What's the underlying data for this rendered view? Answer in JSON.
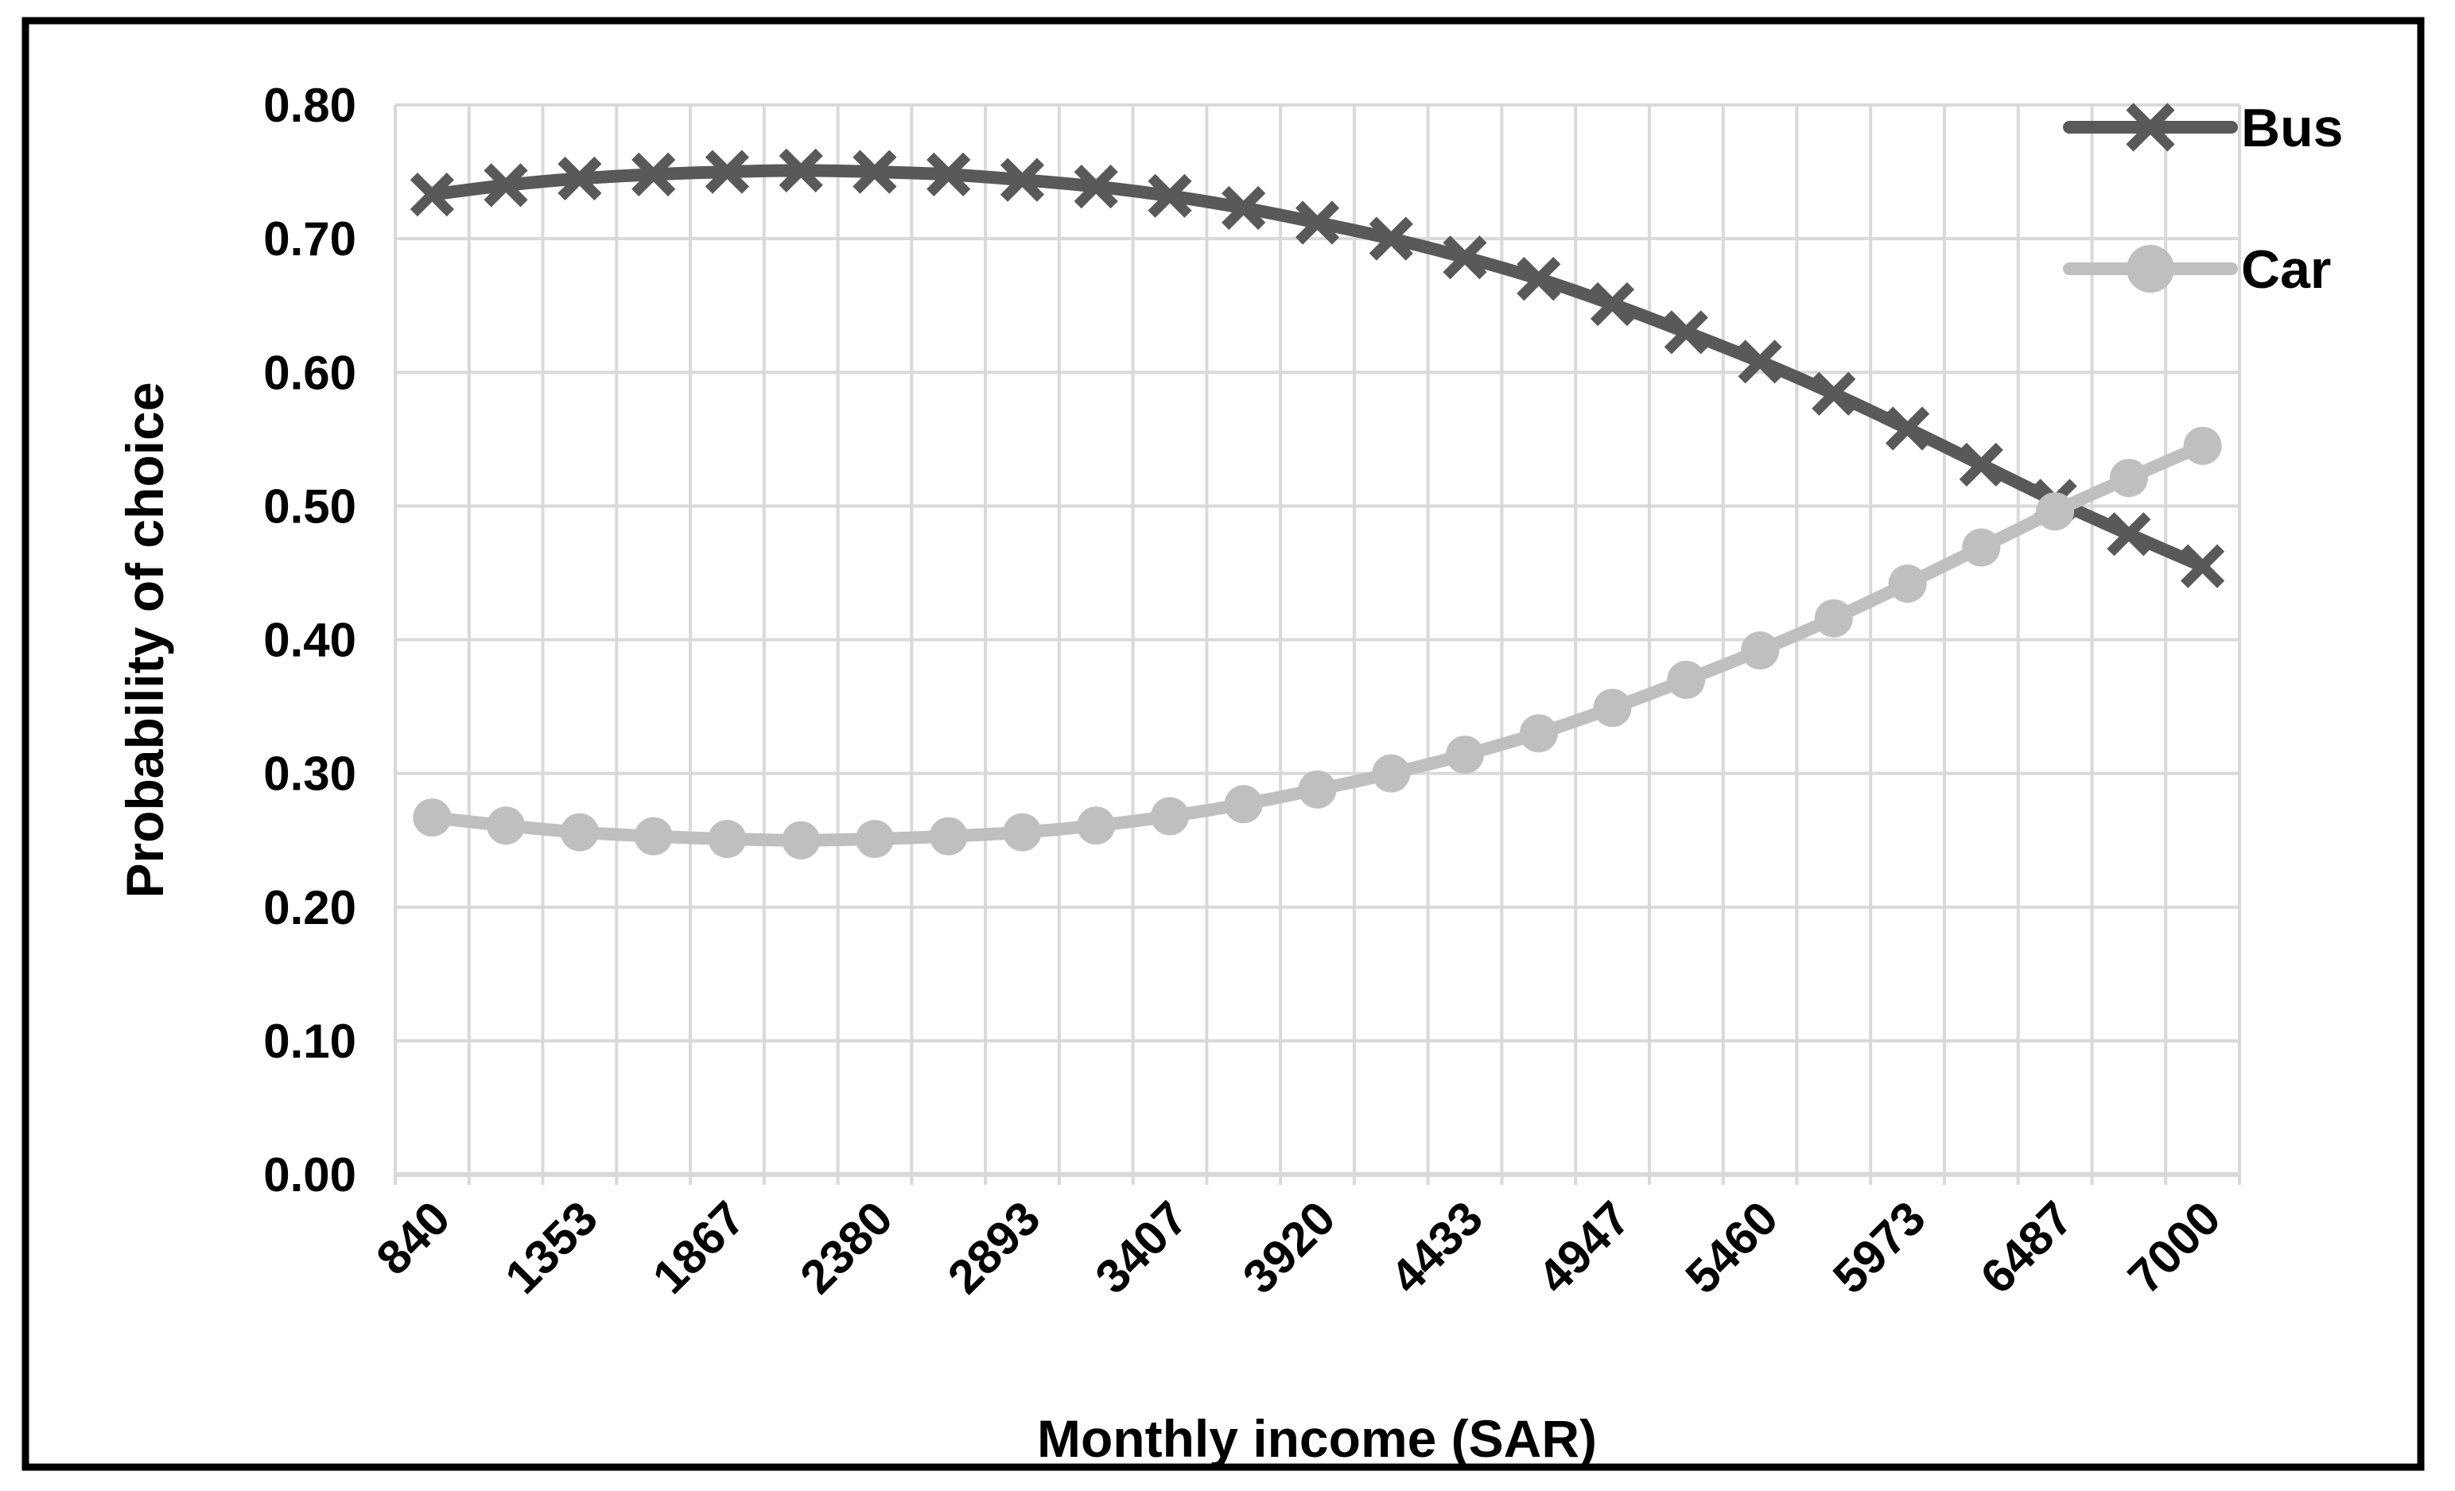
{
  "figure": {
    "background_color": "#ffffff",
    "border_color": "#000000",
    "gridline_color": "#d9d9d9"
  },
  "chart_data": {
    "type": "line",
    "title": "",
    "xlabel": "Monthly income (SAR)",
    "ylabel": "Probability of choice",
    "grid": "both",
    "legend_position": "top-right",
    "ylim": [
      0.0,
      0.8
    ],
    "y_tick_labels_top_down": [
      "0.80",
      "0.70",
      "0.60",
      "0.50",
      "0.40",
      "0.30",
      "0.20",
      "0.10",
      "0.00"
    ],
    "x_tick_labels": [
      "840",
      "1353",
      "1867",
      "2380",
      "2893",
      "3407",
      "3920",
      "4433",
      "4947",
      "5460",
      "5973",
      "6487",
      "7000"
    ],
    "x": [
      840,
      1097,
      1353,
      1610,
      1867,
      2123,
      2380,
      2637,
      2893,
      3150,
      3407,
      3663,
      3920,
      4177,
      4433,
      4690,
      4947,
      5203,
      5460,
      5717,
      5973,
      6230,
      6487,
      6743,
      7000
    ],
    "series": [
      {
        "name": "Bus",
        "color": "#595959",
        "marker": "x",
        "values": [
          0.733,
          0.74,
          0.745,
          0.748,
          0.75,
          0.751,
          0.75,
          0.748,
          0.744,
          0.739,
          0.732,
          0.723,
          0.712,
          0.7,
          0.686,
          0.67,
          0.651,
          0.63,
          0.608,
          0.584,
          0.558,
          0.531,
          0.504,
          0.479,
          0.455
        ]
      },
      {
        "name": "Car",
        "color": "#bfbfbf",
        "marker": "circle",
        "values": [
          0.267,
          0.261,
          0.256,
          0.253,
          0.251,
          0.25,
          0.251,
          0.253,
          0.256,
          0.261,
          0.268,
          0.277,
          0.288,
          0.3,
          0.314,
          0.33,
          0.349,
          0.37,
          0.392,
          0.416,
          0.442,
          0.469,
          0.496,
          0.521,
          0.545
        ]
      }
    ]
  }
}
